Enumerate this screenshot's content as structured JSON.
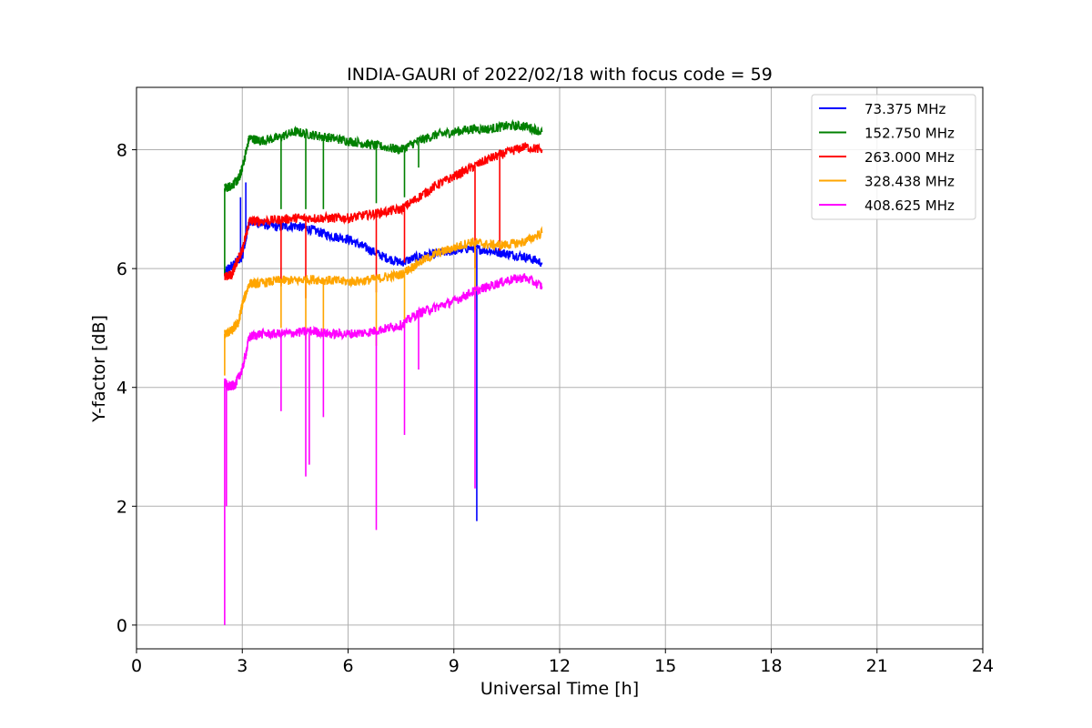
{
  "chart_data": {
    "type": "line",
    "title": "INDIA-GAURI of 2022/02/18 with focus code = 59",
    "xlabel": "Universal Time [h]",
    "ylabel": "Y-factor [dB]",
    "xlim": [
      0,
      24
    ],
    "ylim": [
      -0.4,
      9.05
    ],
    "xticks": [
      0,
      3,
      6,
      9,
      12,
      15,
      18,
      21,
      24
    ],
    "yticks": [
      0,
      2,
      4,
      6,
      8
    ],
    "grid": true,
    "legend_position": "top-right",
    "series": [
      {
        "name": " 73.375 MHz",
        "color": "#0000ff",
        "x": [
          2.5,
          2.6,
          2.8,
          3.0,
          3.2,
          3.5,
          4.0,
          4.5,
          5.0,
          5.5,
          6.0,
          6.5,
          7.0,
          7.5,
          8.0,
          8.5,
          9.0,
          9.5,
          10.0,
          10.5,
          11.0,
          11.5
        ],
        "y": [
          5.9,
          6.0,
          6.1,
          6.2,
          6.8,
          6.75,
          6.7,
          6.72,
          6.65,
          6.55,
          6.5,
          6.35,
          6.2,
          6.1,
          6.2,
          6.25,
          6.3,
          6.35,
          6.3,
          6.25,
          6.2,
          6.1
        ],
        "spikes": [
          {
            "x": 3.1,
            "y": 7.45
          },
          {
            "x": 2.95,
            "y": 7.2
          },
          {
            "x": 9.65,
            "y": 1.75
          }
        ]
      },
      {
        "name": "152.750 MHz",
        "color": "#008000",
        "x": [
          2.5,
          2.7,
          2.9,
          3.0,
          3.2,
          3.5,
          4.0,
          4.5,
          5.0,
          5.5,
          6.0,
          6.5,
          7.0,
          7.5,
          8.0,
          8.5,
          9.0,
          9.5,
          10.0,
          10.5,
          11.0,
          11.5
        ],
        "y": [
          7.35,
          7.4,
          7.5,
          7.7,
          8.2,
          8.15,
          8.2,
          8.3,
          8.25,
          8.2,
          8.15,
          8.1,
          8.05,
          8.0,
          8.15,
          8.25,
          8.3,
          8.35,
          8.35,
          8.4,
          8.4,
          8.3
        ],
        "spikes": [
          {
            "x": 2.5,
            "y": 5.9
          },
          {
            "x": 4.1,
            "y": 7.0
          },
          {
            "x": 4.8,
            "y": 7.0
          },
          {
            "x": 5.3,
            "y": 7.0
          },
          {
            "x": 6.8,
            "y": 7.1
          },
          {
            "x": 7.6,
            "y": 7.2
          },
          {
            "x": 8.0,
            "y": 7.7
          }
        ]
      },
      {
        "name": "263.000 MHz",
        "color": "#ff0000",
        "x": [
          2.5,
          2.7,
          2.9,
          3.0,
          3.2,
          3.5,
          4.0,
          4.5,
          5.0,
          5.5,
          6.0,
          6.5,
          7.0,
          7.5,
          8.0,
          8.5,
          9.0,
          9.5,
          10.0,
          10.5,
          11.0,
          11.5
        ],
        "y": [
          5.85,
          5.9,
          6.2,
          6.3,
          6.8,
          6.8,
          6.82,
          6.85,
          6.85,
          6.85,
          6.85,
          6.9,
          6.95,
          7.0,
          7.2,
          7.4,
          7.55,
          7.7,
          7.85,
          7.95,
          8.05,
          8.0
        ],
        "spikes": [
          {
            "x": 4.1,
            "y": 5.7
          },
          {
            "x": 4.8,
            "y": 5.5
          },
          {
            "x": 6.8,
            "y": 5.6
          },
          {
            "x": 7.6,
            "y": 6.1
          },
          {
            "x": 9.6,
            "y": 6.0
          },
          {
            "x": 10.3,
            "y": 6.3
          }
        ]
      },
      {
        "name": "328.438 MHz",
        "color": "#ffa500",
        "x": [
          2.5,
          2.7,
          2.9,
          3.0,
          3.2,
          3.5,
          4.0,
          4.5,
          5.0,
          5.5,
          6.0,
          6.5,
          7.0,
          7.5,
          8.0,
          8.5,
          9.0,
          9.5,
          10.0,
          10.5,
          11.0,
          11.5
        ],
        "y": [
          4.9,
          4.95,
          5.1,
          5.4,
          5.75,
          5.75,
          5.8,
          5.8,
          5.82,
          5.8,
          5.78,
          5.8,
          5.85,
          5.9,
          6.1,
          6.25,
          6.35,
          6.45,
          6.4,
          6.4,
          6.45,
          6.6
        ],
        "spikes": [
          {
            "x": 2.5,
            "y": 4.2
          },
          {
            "x": 4.1,
            "y": 5.0
          },
          {
            "x": 4.8,
            "y": 4.8
          },
          {
            "x": 5.3,
            "y": 4.9
          },
          {
            "x": 6.8,
            "y": 4.7
          },
          {
            "x": 7.6,
            "y": 5.0
          },
          {
            "x": 9.6,
            "y": 5.3
          }
        ]
      },
      {
        "name": "408.625 MHz",
        "color": "#ff00ff",
        "x": [
          2.5,
          2.6,
          2.8,
          3.0,
          3.2,
          3.5,
          4.0,
          4.5,
          5.0,
          5.5,
          6.0,
          6.5,
          7.0,
          7.5,
          8.0,
          8.5,
          9.0,
          9.5,
          10.0,
          10.5,
          11.0,
          11.5
        ],
        "y": [
          4.1,
          4.0,
          4.05,
          4.3,
          4.85,
          4.9,
          4.9,
          4.92,
          4.95,
          4.9,
          4.9,
          4.92,
          4.98,
          5.05,
          5.25,
          5.35,
          5.45,
          5.6,
          5.7,
          5.8,
          5.85,
          5.7
        ],
        "spikes": [
          {
            "x": 2.5,
            "y": 0.0
          },
          {
            "x": 2.55,
            "y": 2.0
          },
          {
            "x": 4.1,
            "y": 3.6
          },
          {
            "x": 4.8,
            "y": 2.5
          },
          {
            "x": 4.9,
            "y": 2.7
          },
          {
            "x": 5.3,
            "y": 3.5
          },
          {
            "x": 6.8,
            "y": 1.6
          },
          {
            "x": 7.6,
            "y": 3.2
          },
          {
            "x": 8.0,
            "y": 4.3
          },
          {
            "x": 9.6,
            "y": 2.3
          }
        ]
      }
    ]
  }
}
